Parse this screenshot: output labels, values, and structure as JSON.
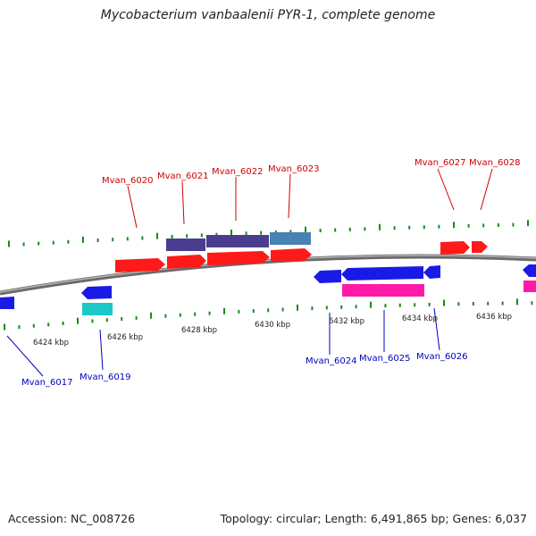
{
  "title": "Mycobacterium vanbaalenii PYR-1, complete genome",
  "footer": {
    "accession": "Accession: NC_008726",
    "summary": "Topology: circular; Length: 6,491,865 bp; Genes: 6,037"
  },
  "colors": {
    "forward_gene": "#ff1a1a",
    "reverse_gene": "#1a1ae6",
    "forward_label": "#d00000",
    "reverse_label": "#0000c0",
    "cds_purple": "#4a3d8f",
    "cds_steelblue": "#4682b4",
    "cds_magenta": "#ff1aa8",
    "cds_cyan": "#1ac8c8",
    "tick": "#1a8a1a",
    "backbone": "#888888"
  },
  "scale": {
    "unit": "kbp",
    "labels": [
      "6424 kbp",
      "6426 kbp",
      "6428 kbp",
      "6430 kbp",
      "6432 kbp",
      "6434 kbp",
      "6436 kbp"
    ]
  },
  "genes": {
    "forward_labeled": [
      "Mvan_6020",
      "Mvan_6021",
      "Mvan_6022",
      "Mvan_6023",
      "Mvan_6027",
      "Mvan_6028"
    ],
    "reverse_labeled": [
      "Mvan_6017",
      "Mvan_6019",
      "Mvan_6024",
      "Mvan_6025",
      "Mvan_6026"
    ]
  }
}
